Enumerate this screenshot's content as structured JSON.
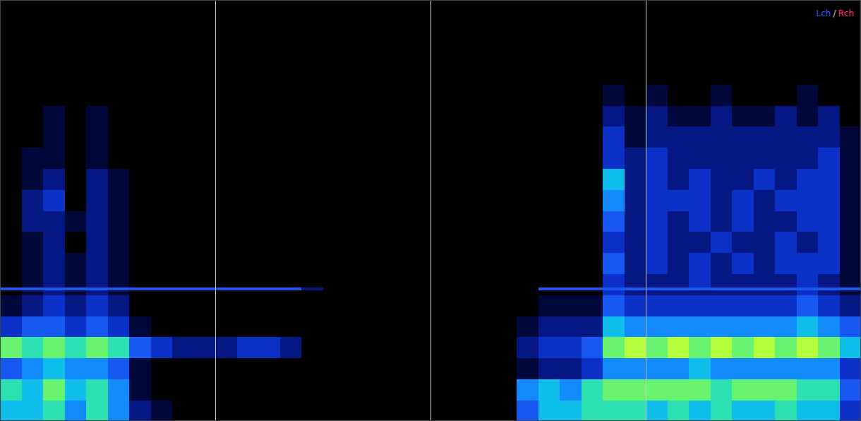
{
  "chart_data": {
    "type": "heatmap",
    "x_bins": [
      0,
      1,
      2,
      3,
      4,
      5,
      6,
      7,
      8,
      9,
      10,
      11,
      12,
      13,
      14,
      15,
      16,
      17,
      18,
      19,
      20,
      21,
      22,
      23,
      24,
      25,
      26,
      27,
      28,
      29,
      30,
      31,
      32,
      33,
      34,
      35,
      36,
      37,
      38,
      39,
      40
    ],
    "y_bins": [
      0,
      5,
      10,
      15,
      20,
      25,
      30,
      31.2,
      31.8,
      35,
      40,
      45,
      50,
      55,
      60,
      65,
      70,
      75,
      80,
      85,
      90,
      95,
      100
    ],
    "values": [
      [
        6,
        6,
        7,
        5,
        7,
        5,
        2,
        1,
        0,
        0,
        0,
        0,
        0,
        0,
        0,
        0,
        0,
        0,
        0,
        0,
        0,
        0,
        0,
        0,
        4,
        6,
        6,
        7,
        7,
        7,
        6,
        7,
        6,
        7,
        6,
        6,
        7,
        6,
        6,
        3
      ],
      [
        7,
        6,
        8,
        6,
        7,
        5,
        1,
        0,
        0,
        0,
        0,
        0,
        0,
        0,
        0,
        0,
        0,
        0,
        0,
        0,
        0,
        0,
        0,
        0,
        5,
        6,
        5,
        7,
        8,
        8,
        8,
        8,
        8,
        7,
        8,
        8,
        8,
        7,
        7,
        4
      ],
      [
        4,
        5,
        6,
        5,
        5,
        4,
        1,
        0,
        0,
        0,
        0,
        0,
        0,
        0,
        0,
        0,
        0,
        0,
        0,
        0,
        0,
        0,
        0,
        0,
        1,
        2,
        2,
        3,
        5,
        5,
        5,
        5,
        6,
        5,
        5,
        5,
        5,
        5,
        5,
        3
      ],
      [
        8,
        7,
        8,
        7,
        8,
        7,
        4,
        3,
        2,
        2,
        2,
        3,
        3,
        2,
        0,
        0,
        0,
        0,
        0,
        0,
        0,
        0,
        0,
        0,
        2,
        3,
        3,
        4,
        8,
        9,
        8,
        9,
        8,
        9,
        8,
        9,
        8,
        9,
        8,
        6
      ],
      [
        3,
        4,
        4,
        3,
        4,
        3,
        1,
        0,
        0,
        0,
        0,
        0,
        0,
        0,
        0,
        0,
        0,
        0,
        0,
        0,
        0,
        0,
        0,
        0,
        1,
        2,
        2,
        2,
        6,
        5,
        5,
        5,
        5,
        5,
        5,
        5,
        5,
        6,
        5,
        4
      ],
      [
        1,
        2,
        3,
        2,
        3,
        2,
        0,
        0,
        0,
        0,
        0,
        0,
        0,
        0,
        0,
        0,
        0,
        0,
        0,
        0,
        0,
        0,
        0,
        0,
        0,
        1,
        1,
        1,
        4,
        3,
        3,
        3,
        3,
        3,
        3,
        3,
        3,
        4,
        3,
        2
      ],
      [
        0,
        1,
        2,
        1,
        2,
        1,
        0,
        0,
        0,
        0,
        0,
        0,
        0,
        0,
        0,
        0,
        0,
        0,
        0,
        0,
        0,
        0,
        0,
        0,
        0,
        0,
        0,
        0,
        3,
        2,
        2,
        2,
        2,
        2,
        2,
        2,
        2,
        3,
        2,
        1
      ],
      [
        4,
        4,
        4,
        4,
        4,
        4,
        4,
        4,
        4,
        4,
        4,
        4,
        4,
        4,
        2,
        0,
        0,
        0,
        0,
        0,
        0,
        0,
        0,
        0,
        0,
        4,
        4,
        4,
        4,
        4,
        4,
        4,
        4,
        4,
        4,
        4,
        4,
        4,
        4,
        4
      ],
      [
        0,
        1,
        2,
        1,
        2,
        1,
        0,
        0,
        0,
        0,
        0,
        0,
        0,
        0,
        0,
        0,
        0,
        0,
        0,
        0,
        0,
        0,
        0,
        0,
        0,
        0,
        0,
        0,
        3,
        2,
        2,
        2,
        3,
        2,
        2,
        2,
        2,
        3,
        2,
        1
      ],
      [
        0,
        1,
        2,
        1,
        2,
        1,
        0,
        0,
        0,
        0,
        0,
        0,
        0,
        0,
        0,
        0,
        0,
        0,
        0,
        0,
        0,
        0,
        0,
        0,
        0,
        0,
        0,
        0,
        4,
        2,
        3,
        2,
        3,
        2,
        3,
        2,
        3,
        3,
        3,
        1
      ],
      [
        0,
        1,
        2,
        0,
        2,
        1,
        0,
        0,
        0,
        0,
        0,
        0,
        0,
        0,
        0,
        0,
        0,
        0,
        0,
        0,
        0,
        0,
        0,
        0,
        0,
        0,
        0,
        0,
        3,
        2,
        3,
        2,
        2,
        3,
        2,
        2,
        3,
        2,
        3,
        1
      ],
      [
        0,
        2,
        2,
        1,
        2,
        1,
        0,
        0,
        0,
        0,
        0,
        0,
        0,
        0,
        0,
        0,
        0,
        0,
        0,
        0,
        0,
        0,
        0,
        0,
        0,
        0,
        0,
        0,
        4,
        2,
        3,
        2,
        3,
        2,
        3,
        2,
        2,
        3,
        3,
        1
      ],
      [
        0,
        2,
        3,
        0,
        2,
        1,
        0,
        0,
        0,
        0,
        0,
        0,
        0,
        0,
        0,
        0,
        0,
        0,
        0,
        0,
        0,
        0,
        0,
        0,
        0,
        0,
        0,
        0,
        5,
        2,
        3,
        3,
        3,
        2,
        3,
        2,
        3,
        3,
        3,
        1
      ],
      [
        0,
        1,
        2,
        0,
        2,
        1,
        0,
        0,
        0,
        0,
        0,
        0,
        0,
        0,
        0,
        0,
        0,
        0,
        0,
        0,
        0,
        0,
        0,
        0,
        0,
        0,
        0,
        0,
        6,
        2,
        3,
        2,
        3,
        2,
        2,
        3,
        2,
        3,
        3,
        1
      ],
      [
        0,
        1,
        1,
        0,
        1,
        0,
        0,
        0,
        0,
        0,
        0,
        0,
        0,
        0,
        0,
        0,
        0,
        0,
        0,
        0,
        0,
        0,
        0,
        0,
        0,
        0,
        0,
        0,
        3,
        2,
        3,
        2,
        2,
        2,
        2,
        2,
        2,
        2,
        3,
        1
      ],
      [
        0,
        0,
        1,
        0,
        1,
        0,
        0,
        0,
        0,
        0,
        0,
        0,
        0,
        0,
        0,
        0,
        0,
        0,
        0,
        0,
        0,
        0,
        0,
        0,
        0,
        0,
        0,
        0,
        3,
        1,
        2,
        2,
        2,
        2,
        2,
        2,
        2,
        2,
        2,
        1
      ],
      [
        0,
        0,
        1,
        0,
        1,
        0,
        0,
        0,
        0,
        0,
        0,
        0,
        0,
        0,
        0,
        0,
        0,
        0,
        0,
        0,
        0,
        0,
        0,
        0,
        0,
        0,
        0,
        0,
        2,
        1,
        2,
        1,
        1,
        2,
        1,
        1,
        2,
        1,
        2,
        0
      ],
      [
        0,
        0,
        0,
        0,
        0,
        0,
        0,
        0,
        0,
        0,
        0,
        0,
        0,
        0,
        0,
        0,
        0,
        0,
        0,
        0,
        0,
        0,
        0,
        0,
        0,
        0,
        0,
        0,
        1,
        0,
        1,
        0,
        0,
        1,
        0,
        0,
        0,
        1,
        0,
        0
      ],
      [
        0,
        0,
        0,
        0,
        0,
        0,
        0,
        0,
        0,
        0,
        0,
        0,
        0,
        0,
        0,
        0,
        0,
        0,
        0,
        0,
        0,
        0,
        0,
        0,
        0,
        0,
        0,
        0,
        0,
        0,
        0,
        0,
        0,
        0,
        0,
        0,
        0,
        0,
        0,
        0
      ],
      [
        0,
        0,
        0,
        0,
        0,
        0,
        0,
        0,
        0,
        0,
        0,
        0,
        0,
        0,
        0,
        0,
        0,
        0,
        0,
        0,
        0,
        0,
        0,
        0,
        0,
        0,
        0,
        0,
        0,
        0,
        0,
        0,
        0,
        0,
        0,
        0,
        0,
        0,
        0,
        0
      ],
      [
        0,
        0,
        0,
        0,
        0,
        0,
        0,
        0,
        0,
        0,
        0,
        0,
        0,
        0,
        0,
        0,
        0,
        0,
        0,
        0,
        0,
        0,
        0,
        0,
        0,
        0,
        0,
        0,
        0,
        0,
        0,
        0,
        0,
        0,
        0,
        0,
        0,
        0,
        0,
        0
      ],
      [
        0,
        0,
        0,
        0,
        0,
        0,
        0,
        0,
        0,
        0,
        0,
        0,
        0,
        0,
        0,
        0,
        0,
        0,
        0,
        0,
        0,
        0,
        0,
        0,
        0,
        0,
        0,
        0,
        0,
        0,
        0,
        0,
        0,
        0,
        0,
        0,
        0,
        0,
        0,
        0
      ]
    ],
    "zlim": [
      0,
      9
    ],
    "xlim": [
      0,
      40
    ],
    "ylim": [
      0,
      100
    ],
    "xticks": [
      10,
      20,
      30
    ],
    "yticks": [],
    "grid": true,
    "tick_labels": false,
    "legend": "upper right",
    "series": [
      {
        "name": "Lch",
        "color": "#2f5dff"
      },
      {
        "name": "Rch",
        "color": "#ff2f7d"
      }
    ],
    "annotations": [
      "/"
    ]
  }
}
